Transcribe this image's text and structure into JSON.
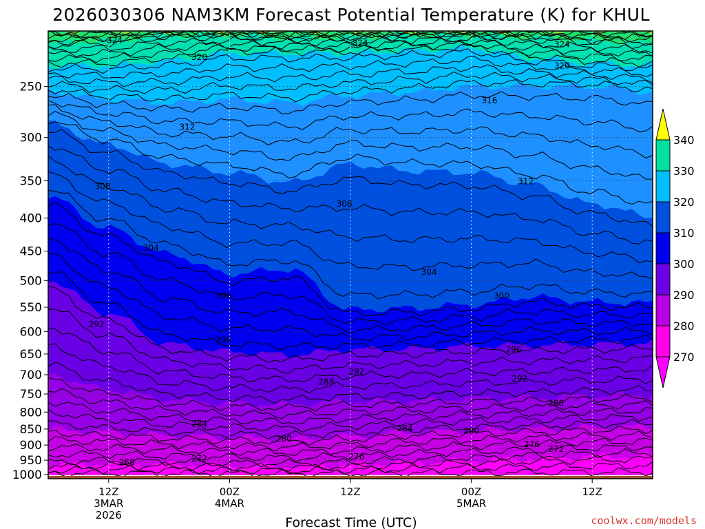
{
  "chart_data": {
    "type": "contour",
    "title": "2026030306 NAM3KM Forecast Potential Temperature (K) for KHUL",
    "xlabel": "Forecast Time (UTC)",
    "ylabel": "",
    "watermark": "coolwx.com/models",
    "x_range_hours": [
      -5,
      45
    ],
    "y_range_hpa": [
      1015,
      205
    ],
    "y_ticks": [
      250,
      300,
      350,
      400,
      450,
      500,
      550,
      600,
      650,
      700,
      750,
      800,
      850,
      900,
      950,
      1000
    ],
    "x_ticks": [
      {
        "hour": 0,
        "lines": [
          "12Z",
          "3MAR",
          "2026"
        ]
      },
      {
        "hour": 10,
        "lines": [
          "00Z",
          "4MAR"
        ]
      },
      {
        "hour": 20,
        "lines": [
          "12Z"
        ]
      },
      {
        "hour": 30,
        "lines": [
          "00Z",
          "5MAR"
        ]
      },
      {
        "hour": 40,
        "lines": [
          "12Z"
        ]
      }
    ],
    "colorbar": {
      "levels": [
        270,
        280,
        290,
        300,
        310,
        320,
        330,
        340
      ],
      "colors": [
        "#ff00ff",
        "#c000e0",
        "#7a00e6",
        "#0000f0",
        "#0055e0",
        "#1e90ff",
        "#00bfff",
        "#00dfa0",
        "#60e040"
      ],
      "tip_low": "#ff00ff",
      "tip_high": "#ffff00"
    },
    "bands": [
      {
        "bottom": [
          1002,
          1002,
          1002,
          1002,
          1002,
          1002,
          1002,
          1002,
          1002,
          1002,
          1002
        ],
        "color": "#ff00ff"
      },
      {
        "bottom": [
          968,
          962,
          965,
          968,
          970,
          966,
          958,
          952,
          945,
          938,
          935
        ],
        "color": "#c800e8"
      },
      {
        "bottom": [
          850,
          860,
          870,
          876,
          880,
          872,
          860,
          855,
          850,
          845,
          842
        ],
        "color": "#9600e6"
      },
      {
        "bottom": [
          700,
          738,
          765,
          775,
          778,
          770,
          768,
          762,
          760,
          755,
          752
        ],
        "color": "#6a00e6"
      },
      {
        "bottom": [
          498,
          562,
          628,
          645,
          652,
          640,
          638,
          632,
          630,
          628,
          625
        ],
        "color": "#0000f0"
      },
      {
        "bottom": [
          370,
          415,
          455,
          488,
          480,
          555,
          552,
          545,
          530,
          540,
          542
        ],
        "color": "#0050e0"
      },
      {
        "bottom": [
          285,
          308,
          330,
          340,
          352,
          330,
          338,
          340,
          355,
          380,
          398
        ],
        "color": "#1e90ff"
      },
      {
        "bottom": [
          255,
          262,
          265,
          262,
          265,
          258,
          255,
          250,
          250,
          250,
          255
        ],
        "color": "#00bfff"
      },
      {
        "bottom": [
          232,
          232,
          228,
          222,
          222,
          222,
          220,
          218,
          226,
          230,
          232
        ],
        "color": "#00e0b0"
      },
      {
        "bottom": [
          214,
          212,
          208,
          208,
          210,
          210,
          208,
          208,
          210,
          212,
          214
        ],
        "color": "#20e070"
      },
      {
        "bottom": [
          205,
          205,
          205,
          205,
          205,
          205,
          205,
          205,
          205,
          205,
          205
        ],
        "color": "#80e040"
      }
    ],
    "band_hours": [
      -5,
      0,
      5,
      10,
      15,
      20,
      25,
      30,
      35,
      40,
      45
    ],
    "contour_labels": [
      {
        "text": "324",
        "hour": 0.5,
        "hpa": 212
      },
      {
        "text": "324",
        "hour": 20.8,
        "hpa": 214
      },
      {
        "text": "324",
        "hour": 37.5,
        "hpa": 215
      },
      {
        "text": "320",
        "hour": 7.5,
        "hpa": 225
      },
      {
        "text": "320",
        "hour": 37.5,
        "hpa": 232
      },
      {
        "text": "316",
        "hour": 31.5,
        "hpa": 263
      },
      {
        "text": "312",
        "hour": 6.5,
        "hpa": 289
      },
      {
        "text": "312",
        "hour": 34.5,
        "hpa": 351
      },
      {
        "text": "308",
        "hour": -0.5,
        "hpa": 357
      },
      {
        "text": "308",
        "hour": 19.5,
        "hpa": 380
      },
      {
        "text": "304",
        "hour": 3.5,
        "hpa": 445
      },
      {
        "text": "304",
        "hour": 26.5,
        "hpa": 485
      },
      {
        "text": "300",
        "hour": 9.5,
        "hpa": 528
      },
      {
        "text": "300",
        "hour": 32.5,
        "hpa": 528
      },
      {
        "text": "296",
        "hour": 9.5,
        "hpa": 618
      },
      {
        "text": "296",
        "hour": 33.5,
        "hpa": 640
      },
      {
        "text": "292",
        "hour": -1,
        "hpa": 585
      },
      {
        "text": "292",
        "hour": 20.5,
        "hpa": 692
      },
      {
        "text": "292",
        "hour": 34,
        "hpa": 710
      },
      {
        "text": "288",
        "hour": 18,
        "hpa": 718
      },
      {
        "text": "288",
        "hour": 37,
        "hpa": 775
      },
      {
        "text": "284",
        "hour": 7.5,
        "hpa": 835
      },
      {
        "text": "284",
        "hour": 24.5,
        "hpa": 848
      },
      {
        "text": "280",
        "hour": 14.5,
        "hpa": 880
      },
      {
        "text": "280",
        "hour": 30,
        "hpa": 855
      },
      {
        "text": "276",
        "hour": 20.5,
        "hpa": 938
      },
      {
        "text": "276",
        "hour": 35,
        "hpa": 898
      },
      {
        "text": "272",
        "hour": 7.5,
        "hpa": 945
      },
      {
        "text": "272",
        "hour": 37,
        "hpa": 913
      },
      {
        "text": "268",
        "hour": 1.5,
        "hpa": 958
      }
    ],
    "ground_color": "#a0522d"
  }
}
